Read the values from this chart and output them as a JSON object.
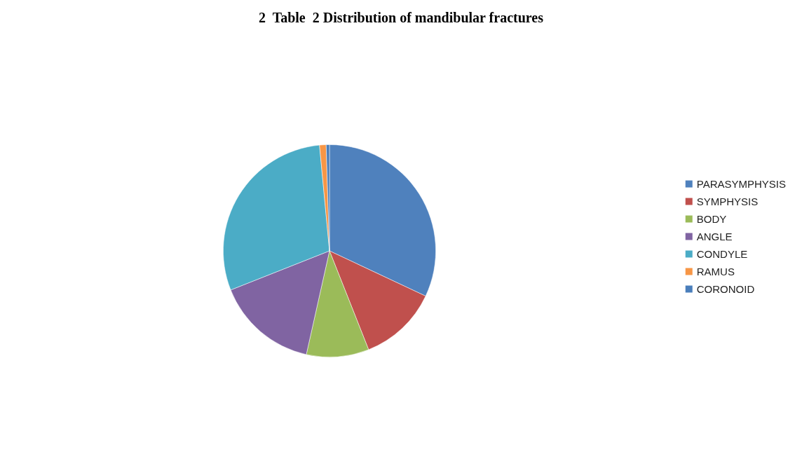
{
  "chart_data": {
    "type": "pie",
    "title": "2  Table  2 Distribution of mandibular fractures",
    "categories": [
      "PARASYMPHYSIS",
      "SYMPHYSIS",
      "BODY",
      "ANGLE",
      "CONDYLE",
      "RAMUS",
      "CORONOID"
    ],
    "values": [
      32,
      12,
      9.5,
      15.5,
      29.5,
      1,
      0.5
    ],
    "colors": [
      "#4f81bd",
      "#c0504d",
      "#9bbb59",
      "#8064a2",
      "#4bacc6",
      "#f79646",
      "#4a7ebb"
    ],
    "legend": "right"
  }
}
